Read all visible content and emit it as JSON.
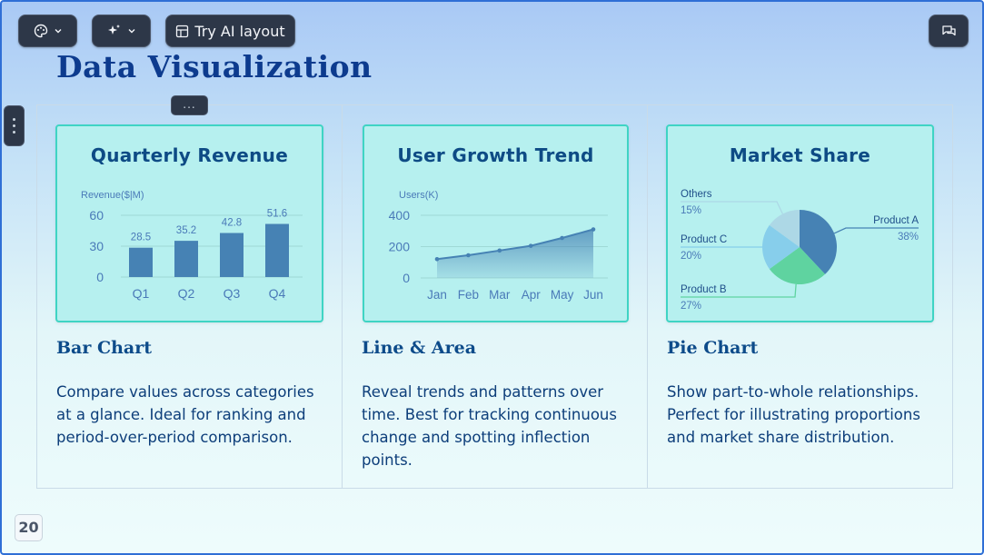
{
  "toolbar": {
    "theme_icon": "palette-icon",
    "magic_icon": "sparkles-icon",
    "ai_layout_label": "Try AI layout",
    "comment_icon": "comment-icon"
  },
  "slide": {
    "title": "Data Visualization",
    "dots_label": "...",
    "page_number": "20"
  },
  "columns": [
    {
      "card_title": "Quarterly Revenue",
      "heading": "Bar Chart",
      "description": "Compare values across categories at a glance. Ideal for ranking and period-over-period comparison."
    },
    {
      "card_title": "User Growth Trend",
      "heading": "Line & Area",
      "description": "Reveal trends and patterns over time. Best for tracking continuous change and spotting inflection points."
    },
    {
      "card_title": "Market Share",
      "heading": "Pie Chart",
      "description": "Show part-to-whole relationships. Perfect for illustrating proportions and market share distribution."
    }
  ],
  "chart_data": [
    {
      "type": "bar",
      "title": "Quarterly Revenue",
      "ylabel": "Revenue($|M)",
      "categories": [
        "Q1",
        "Q2",
        "Q3",
        "Q4"
      ],
      "values": [
        28.5,
        35.2,
        42.8,
        51.6
      ],
      "value_labels": [
        "28.5",
        "35.2",
        "42.8",
        "51.6"
      ],
      "yticks": [
        "0",
        "30",
        "60"
      ],
      "ylim": [
        0,
        60
      ],
      "color": "#4682b4"
    },
    {
      "type": "line",
      "title": "User Growth Trend",
      "ylabel": "Users(K)",
      "categories": [
        "Jan",
        "Feb",
        "Mar",
        "Apr",
        "May",
        "Jun"
      ],
      "values": [
        120,
        145,
        175,
        205,
        255,
        310
      ],
      "yticks": [
        "0",
        "200",
        "400"
      ],
      "ylim": [
        0,
        400
      ],
      "color": "#4682b4"
    },
    {
      "type": "pie",
      "title": "Market Share",
      "slices": [
        {
          "name": "Product A",
          "value": 38,
          "label": "38%",
          "color": "#4682b4"
        },
        {
          "name": "Product B",
          "value": 27,
          "label": "27%",
          "color": "#5fd3a0"
        },
        {
          "name": "Product C",
          "value": 20,
          "label": "20%",
          "color": "#87ceeb"
        },
        {
          "name": "Others",
          "value": 15,
          "label": "15%",
          "color": "#add8e6"
        }
      ]
    }
  ]
}
